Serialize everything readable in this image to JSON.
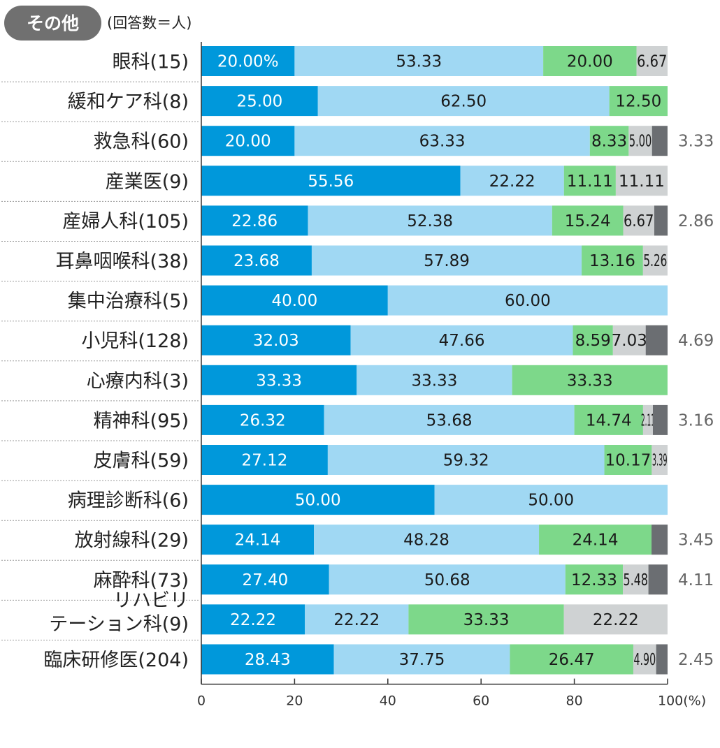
{
  "header": {
    "badge": "その他",
    "note": "(回答数＝人)"
  },
  "chart_data": {
    "type": "bar",
    "orientation": "horizontal",
    "stacked": true,
    "categories": [
      "眼科(15)",
      "緩和ケア科(8)",
      "救急科(60)",
      "産業医(9)",
      "産婦人科(105)",
      "耳鼻咽喉科(38)",
      "集中治療科(5)",
      "小児科(128)",
      "心療内科(3)",
      "精神科(95)",
      "皮膚科(59)",
      "病理診断科(6)",
      "放射線科(29)",
      "麻酔科(73)",
      "リハビリ\nテーション科(9)",
      "臨床研修医(204)"
    ],
    "series": [
      {
        "color": "#0098db",
        "values": [
          20.0,
          25.0,
          20.0,
          55.56,
          22.86,
          23.68,
          40.0,
          32.03,
          33.33,
          26.32,
          27.12,
          50.0,
          24.14,
          27.4,
          22.22,
          28.43
        ]
      },
      {
        "color": "#a0d8f3",
        "values": [
          53.33,
          62.5,
          63.33,
          22.22,
          52.38,
          57.89,
          60.0,
          47.66,
          33.33,
          53.68,
          59.32,
          50.0,
          48.28,
          50.68,
          22.22,
          37.75
        ]
      },
      {
        "color": "#7dd88a",
        "values": [
          20.0,
          12.5,
          8.33,
          11.11,
          15.24,
          13.16,
          0,
          8.59,
          33.33,
          14.74,
          10.17,
          0,
          24.14,
          12.33,
          33.33,
          26.47
        ]
      },
      {
        "color": "#cfd2d3",
        "values": [
          6.67,
          0,
          5.0,
          11.11,
          6.67,
          5.26,
          0,
          7.03,
          0,
          2.11,
          3.39,
          0,
          0,
          5.48,
          22.22,
          4.9
        ]
      },
      {
        "color": "#6b6e72",
        "values": [
          0,
          0,
          3.33,
          0,
          2.86,
          0,
          0,
          4.69,
          0,
          3.16,
          0,
          0,
          3.45,
          4.11,
          0,
          2.45
        ]
      }
    ],
    "labels": [
      [
        "20.00%",
        "53.33",
        "20.00",
        "6.67",
        ""
      ],
      [
        "25.00",
        "62.50",
        "12.50",
        "",
        ""
      ],
      [
        "20.00",
        "63.33",
        "8.33",
        "5.00",
        "3.33"
      ],
      [
        "55.56",
        "22.22",
        "11.11",
        "11.11",
        ""
      ],
      [
        "22.86",
        "52.38",
        "15.24",
        "6.67",
        "2.86"
      ],
      [
        "23.68",
        "57.89",
        "13.16",
        "5.26",
        ""
      ],
      [
        "40.00",
        "60.00",
        "",
        "",
        ""
      ],
      [
        "32.03",
        "47.66",
        "8.59",
        "7.03",
        "4.69"
      ],
      [
        "33.33",
        "33.33",
        "33.33",
        "",
        ""
      ],
      [
        "26.32",
        "53.68",
        "14.74",
        "2.11",
        "3.16"
      ],
      [
        "27.12",
        "59.32",
        "10.17",
        "3.39",
        ""
      ],
      [
        "50.00",
        "50.00",
        "",
        "",
        ""
      ],
      [
        "24.14",
        "48.28",
        "24.14",
        "",
        "3.45"
      ],
      [
        "27.40",
        "50.68",
        "12.33",
        "5.48",
        "4.11"
      ],
      [
        "22.22",
        "22.22",
        "33.33",
        "22.22",
        ""
      ],
      [
        "28.43",
        "37.75",
        "26.47",
        "4.90",
        "2.45"
      ]
    ],
    "x_ticks": [
      "0",
      "20",
      "40",
      "60",
      "80",
      "100(%)"
    ],
    "xlim": [
      0,
      100
    ],
    "grid": false,
    "legend": "none"
  }
}
